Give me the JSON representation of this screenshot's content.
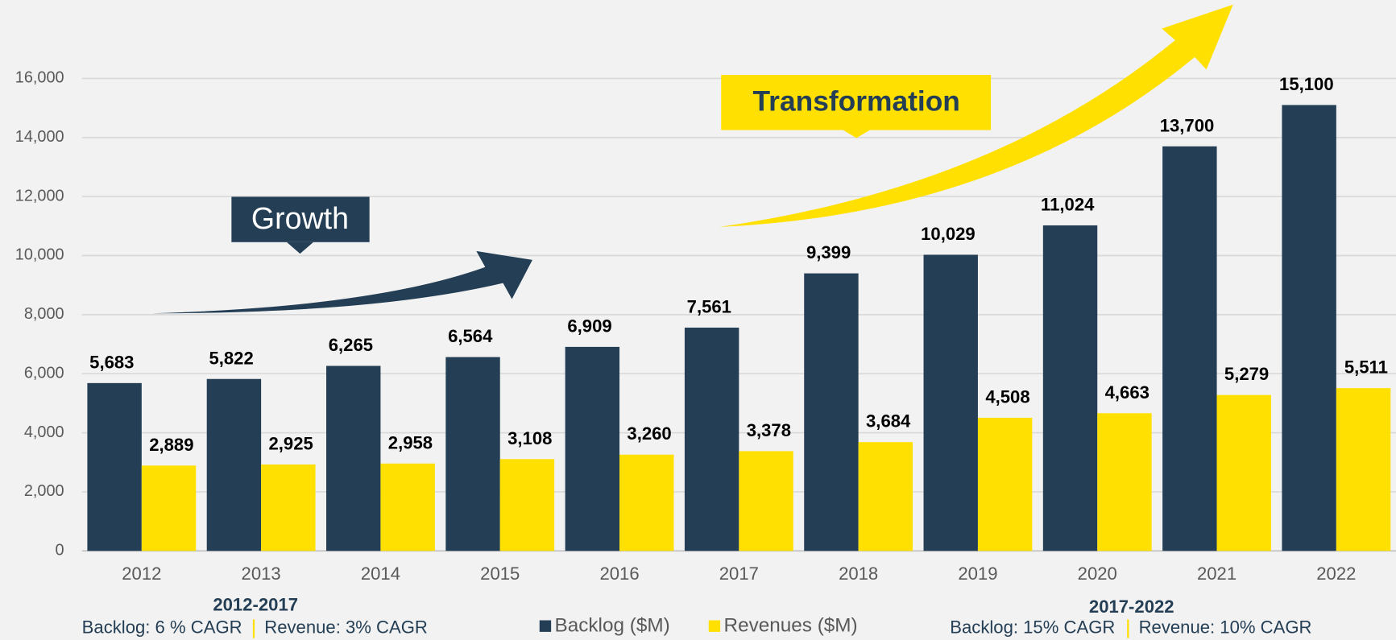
{
  "chart_data": {
    "type": "bar",
    "categories": [
      "2012",
      "2013",
      "2014",
      "2015",
      "2016",
      "2017",
      "2018",
      "2019",
      "2020",
      "2021",
      "2022"
    ],
    "series": [
      {
        "name": "Backlog ($M)",
        "color": "#243f55",
        "values": [
          5683,
          5822,
          6265,
          6564,
          6909,
          7561,
          9399,
          10029,
          11024,
          13700,
          15100
        ],
        "value_labels": [
          "5,683",
          "5,822",
          "6,265",
          "6,564",
          "6,909",
          "7,561",
          "9,399",
          "10,029",
          "11,024",
          "13,700",
          "15,100"
        ]
      },
      {
        "name": "Revenues ($M)",
        "color": "#ffe000",
        "values": [
          2889,
          2925,
          2958,
          3108,
          3260,
          3378,
          3684,
          4508,
          4663,
          5279,
          5511
        ],
        "value_labels": [
          "2,889",
          "2,925",
          "2,958",
          "3,108",
          "3,260",
          "3,378",
          "3,684",
          "4,508",
          "4,663",
          "5,279",
          "5,511"
        ]
      }
    ],
    "ylim": [
      0,
      16000
    ],
    "yticks": [
      0,
      {
        "value": 2000,
        "label": "2,000"
      },
      {
        "value": 4000,
        "label": "4,000"
      },
      {
        "value": 6000,
        "label": "6,000"
      },
      {
        "value": 8000,
        "label": "8,000"
      },
      {
        "value": 10000,
        "label": "10,000"
      },
      {
        "value": 12000,
        "label": "12,000"
      },
      {
        "value": 14000,
        "label": "14,000"
      },
      {
        "value": 16000,
        "label": "16,000"
      }
    ],
    "grid": true,
    "legend": "bottom",
    "annotations": {
      "growth": "Growth",
      "transformation": "Transformation",
      "period1": "2012-2017",
      "period1_backlog": "Backlog: 6 % CAGR",
      "period1_revenue": "Revenue: 3% CAGR",
      "period2": "2017-2022",
      "period2_backlog": "Backlog: 15% CAGR",
      "period2_revenue": "Revenue: 10% CAGR"
    }
  }
}
